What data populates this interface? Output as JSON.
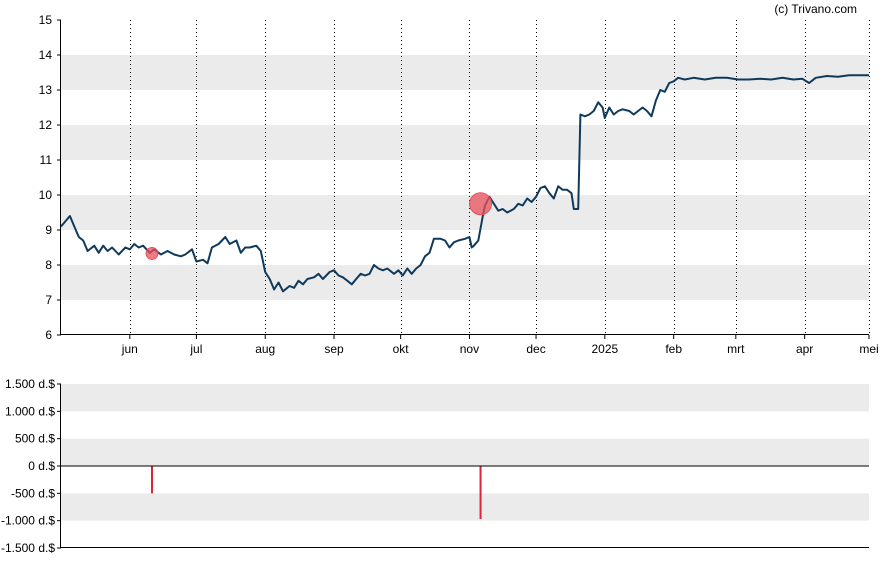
{
  "watermark": "(c) Trivano.com",
  "colors": {
    "price_line": "#0f3a5c",
    "band": "#ebebeb",
    "marker": "#e8505b",
    "bar": "#e0213a",
    "axis": "#000000"
  },
  "chart_data": [
    {
      "type": "line",
      "title": "",
      "ylim": [
        6,
        15
      ],
      "y_ticks": [
        6,
        7,
        8,
        9,
        10,
        11,
        12,
        13,
        14,
        15
      ],
      "grid": "vertical dotted lines at month ticks, alternating horizontal bands",
      "x_range": [
        0,
        364
      ],
      "x_ticks": [
        {
          "label": "jun",
          "x": 31
        },
        {
          "label": "jul",
          "x": 61
        },
        {
          "label": "aug",
          "x": 92
        },
        {
          "label": "sep",
          "x": 123
        },
        {
          "label": "okt",
          "x": 153
        },
        {
          "label": "nov",
          "x": 184
        },
        {
          "label": "dec",
          "x": 214
        },
        {
          "label": "2025",
          "x": 245
        },
        {
          "label": "feb",
          "x": 276
        },
        {
          "label": "mrt",
          "x": 304
        },
        {
          "label": "apr",
          "x": 335
        },
        {
          "label": "mei",
          "x": 364
        }
      ],
      "series": [
        {
          "points": [
            [
              0,
              9.1
            ],
            [
              4,
              9.4
            ],
            [
              6,
              9.1
            ],
            [
              8,
              8.8
            ],
            [
              10,
              8.7
            ],
            [
              12,
              8.4
            ],
            [
              15,
              8.55
            ],
            [
              17,
              8.35
            ],
            [
              19,
              8.55
            ],
            [
              21,
              8.4
            ],
            [
              23,
              8.5
            ],
            [
              26,
              8.3
            ],
            [
              29,
              8.5
            ],
            [
              31,
              8.45
            ],
            [
              33,
              8.6
            ],
            [
              35,
              8.5
            ],
            [
              37,
              8.55
            ],
            [
              40,
              8.35
            ],
            [
              42,
              8.45
            ],
            [
              45,
              8.3
            ],
            [
              48,
              8.4
            ],
            [
              51,
              8.3
            ],
            [
              54,
              8.25
            ],
            [
              56,
              8.3
            ],
            [
              59,
              8.45
            ],
            [
              61,
              8.1
            ],
            [
              64,
              8.15
            ],
            [
              66,
              8.05
            ],
            [
              68,
              8.5
            ],
            [
              71,
              8.6
            ],
            [
              74,
              8.8
            ],
            [
              76,
              8.6
            ],
            [
              79,
              8.7
            ],
            [
              81,
              8.35
            ],
            [
              83,
              8.5
            ],
            [
              85,
              8.5
            ],
            [
              88,
              8.55
            ],
            [
              90,
              8.4
            ],
            [
              92,
              7.8
            ],
            [
              94,
              7.6
            ],
            [
              96,
              7.3
            ],
            [
              98,
              7.5
            ],
            [
              100,
              7.25
            ],
            [
              103,
              7.4
            ],
            [
              105,
              7.35
            ],
            [
              107,
              7.55
            ],
            [
              109,
              7.45
            ],
            [
              111,
              7.6
            ],
            [
              114,
              7.65
            ],
            [
              116,
              7.75
            ],
            [
              118,
              7.6
            ],
            [
              121,
              7.8
            ],
            [
              123,
              7.85
            ],
            [
              125,
              7.7
            ],
            [
              127,
              7.65
            ],
            [
              129,
              7.55
            ],
            [
              131,
              7.45
            ],
            [
              133,
              7.6
            ],
            [
              135,
              7.75
            ],
            [
              137,
              7.7
            ],
            [
              139,
              7.75
            ],
            [
              141,
              8.0
            ],
            [
              143,
              7.9
            ],
            [
              145,
              7.85
            ],
            [
              147,
              7.9
            ],
            [
              150,
              7.75
            ],
            [
              152,
              7.85
            ],
            [
              154,
              7.7
            ],
            [
              156,
              7.9
            ],
            [
              158,
              7.75
            ],
            [
              160,
              7.9
            ],
            [
              162,
              8.0
            ],
            [
              164,
              8.25
            ],
            [
              166,
              8.35
            ],
            [
              168,
              8.75
            ],
            [
              171,
              8.75
            ],
            [
              173,
              8.7
            ],
            [
              175,
              8.5
            ],
            [
              177,
              8.65
            ],
            [
              179,
              8.7
            ],
            [
              182,
              8.75
            ],
            [
              184,
              8.8
            ],
            [
              185,
              8.5
            ],
            [
              186,
              8.55
            ],
            [
              188,
              8.7
            ],
            [
              190,
              9.4
            ],
            [
              191,
              9.7
            ],
            [
              193,
              9.95
            ],
            [
              195,
              9.75
            ],
            [
              197,
              9.55
            ],
            [
              199,
              9.6
            ],
            [
              201,
              9.5
            ],
            [
              204,
              9.6
            ],
            [
              206,
              9.75
            ],
            [
              208,
              9.7
            ],
            [
              210,
              9.9
            ],
            [
              212,
              9.8
            ],
            [
              214,
              9.95
            ],
            [
              216,
              10.2
            ],
            [
              218,
              10.25
            ],
            [
              220,
              10.05
            ],
            [
              222,
              9.9
            ],
            [
              224,
              10.25
            ],
            [
              226,
              10.15
            ],
            [
              228,
              10.15
            ],
            [
              230,
              10.05
            ],
            [
              231,
              9.6
            ],
            [
              233,
              9.6
            ],
            [
              234,
              12.3
            ],
            [
              236,
              12.25
            ],
            [
              238,
              12.3
            ],
            [
              240,
              12.4
            ],
            [
              242,
              12.65
            ],
            [
              244,
              12.5
            ],
            [
              245,
              12.2
            ],
            [
              247,
              12.5
            ],
            [
              249,
              12.3
            ],
            [
              251,
              12.4
            ],
            [
              253,
              12.45
            ],
            [
              256,
              12.4
            ],
            [
              258,
              12.3
            ],
            [
              260,
              12.4
            ],
            [
              262,
              12.5
            ],
            [
              264,
              12.4
            ],
            [
              266,
              12.25
            ],
            [
              268,
              12.7
            ],
            [
              270,
              13.0
            ],
            [
              272,
              12.95
            ],
            [
              274,
              13.2
            ],
            [
              276,
              13.25
            ],
            [
              278,
              13.35
            ],
            [
              281,
              13.3
            ],
            [
              285,
              13.35
            ],
            [
              290,
              13.3
            ],
            [
              295,
              13.35
            ],
            [
              300,
              13.35
            ],
            [
              305,
              13.3
            ],
            [
              310,
              13.3
            ],
            [
              315,
              13.32
            ],
            [
              320,
              13.3
            ],
            [
              325,
              13.35
            ],
            [
              330,
              13.3
            ],
            [
              334,
              13.32
            ],
            [
              337,
              13.2
            ],
            [
              340,
              13.35
            ],
            [
              345,
              13.4
            ],
            [
              350,
              13.38
            ],
            [
              355,
              13.42
            ],
            [
              360,
              13.42
            ],
            [
              364,
              13.42
            ]
          ]
        }
      ],
      "markers": [
        {
          "x": 41,
          "y": 8.33,
          "size": "small"
        },
        {
          "x": 189,
          "y": 9.75,
          "size": "large"
        }
      ]
    },
    {
      "type": "bar",
      "title": "",
      "ylim": [
        -1500,
        1500
      ],
      "y_ticks": [
        {
          "value": 1500,
          "label": "1.500 d.$"
        },
        {
          "value": 1000,
          "label": "1.000 d.$"
        },
        {
          "value": 500,
          "label": "500 d.$"
        },
        {
          "value": 0,
          "label": "0 d.$"
        },
        {
          "value": -500,
          "label": "-500 d.$"
        },
        {
          "value": -1000,
          "label": "-1.000 d.$"
        },
        {
          "value": -1500,
          "label": "-1.500 d.$"
        }
      ],
      "bars": [
        {
          "x": 41,
          "value": -500
        },
        {
          "x": 189,
          "value": -970
        }
      ]
    }
  ]
}
